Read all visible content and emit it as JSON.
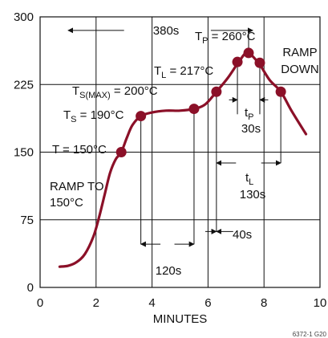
{
  "chart_data": {
    "type": "line",
    "xlabel": "MINUTES",
    "ylabel": "",
    "xlim": [
      0,
      10
    ],
    "ylim": [
      0,
      300
    ],
    "x_ticks": [
      "0",
      "2",
      "4",
      "6",
      "8",
      "10"
    ],
    "y_ticks": [
      "0",
      "75",
      "150",
      "225",
      "300"
    ],
    "grid": true,
    "figure_id": "6372-1 G20",
    "series": [
      {
        "x": [
          0.7,
          1.0,
          1.3,
          1.6,
          1.9,
          2.1,
          2.3,
          2.5,
          2.7,
          2.9,
          3.1,
          3.3,
          3.6,
          4.0,
          4.5,
          5.0,
          5.5,
          5.9,
          6.3,
          6.7,
          7.1,
          7.4,
          7.8,
          8.2,
          8.6,
          9.0,
          9.5
        ],
        "y": [
          23,
          24,
          28,
          37,
          56,
          77,
          102,
          127,
          142,
          150,
          166,
          180,
          190,
          194,
          196,
          196,
          198,
          203,
          217,
          232,
          250,
          260,
          249,
          230,
          217,
          195,
          170
        ]
      }
    ],
    "highlighted_points": [
      {
        "x": 2.9,
        "y": 150
      },
      {
        "x": 3.6,
        "y": 190
      },
      {
        "x": 5.5,
        "y": 198
      },
      {
        "x": 6.3,
        "y": 217
      },
      {
        "x": 7.05,
        "y": 250
      },
      {
        "x": 7.45,
        "y": 260
      },
      {
        "x": 7.85,
        "y": 249
      },
      {
        "x": 8.6,
        "y": 217
      }
    ],
    "annotations": {
      "total": "380s",
      "tp_label": "T",
      "tp_sub": "P",
      "tp_value": " = 260°C",
      "tl_label": "T",
      "tl_sub": "L",
      "tl_value": " = 217°C",
      "tsmax_label": "T",
      "tsmax_sub": "S(MAX)",
      "tsmax_value": " = 200°C",
      "ts_label": "T",
      "ts_sub": "S",
      "ts_value": " = 190°C",
      "t150": "T = 150°C",
      "ramp_to_1": "RAMP TO",
      "ramp_to_2": "150°C",
      "ramp_down_1": "RAMP",
      "ramp_down_2": "DOWN",
      "tp_time_label": "t",
      "tp_time_sub": "P",
      "tp_time_value": "30s",
      "tl_time_label": "t",
      "tl_time_sub": "L",
      "tl_time_value": "130s",
      "s40": "40s",
      "s120": "120s"
    }
  }
}
